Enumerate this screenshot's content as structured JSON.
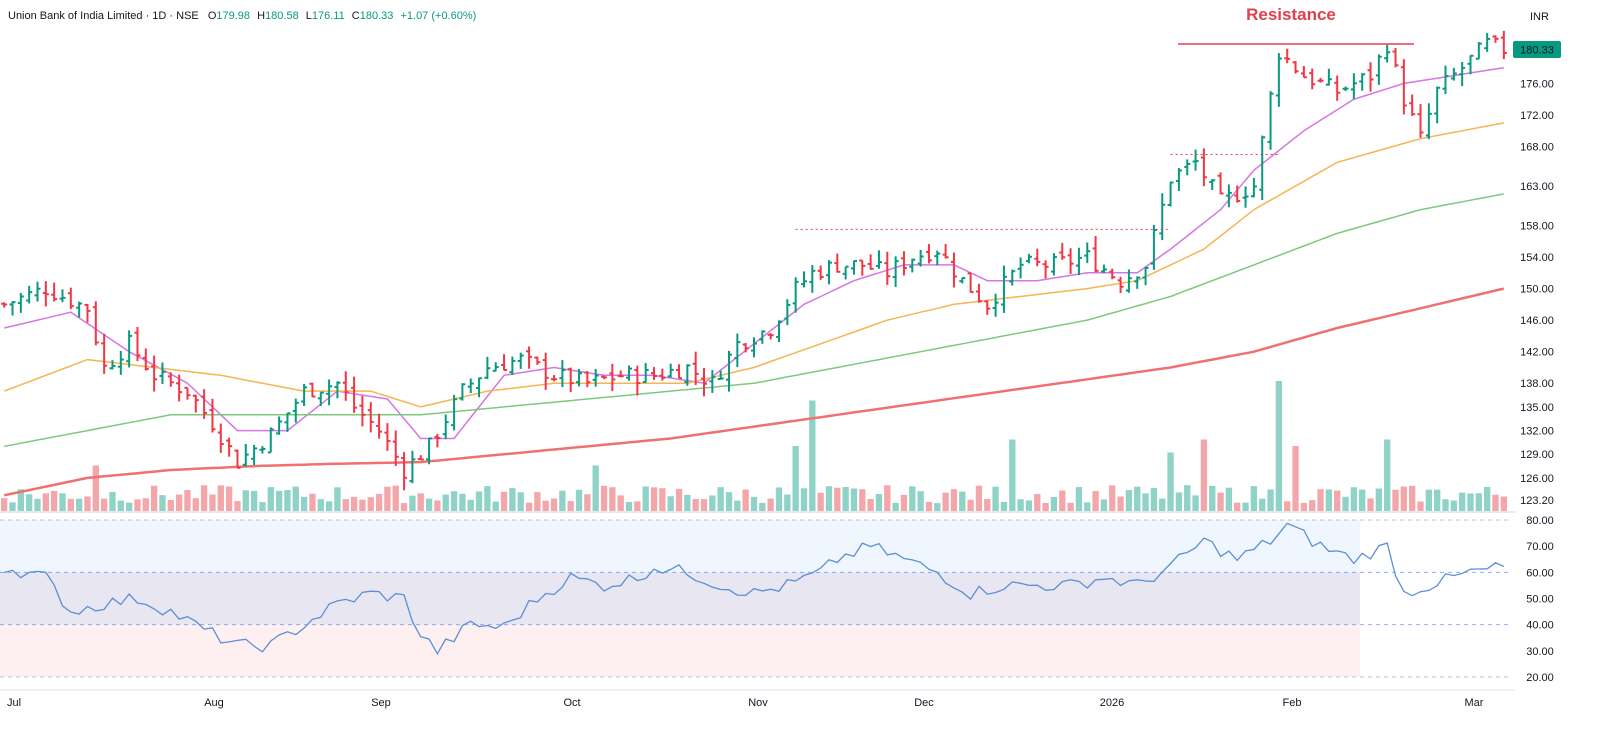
{
  "header": {
    "name": "Union Bank of India Limited · 1D · NSE",
    "o_label": "O",
    "o": "179.98",
    "h_label": "H",
    "h": "180.58",
    "l_label": "L",
    "l": "176.11",
    "c_label": "C",
    "c": "180.33",
    "change": "+1.07 (+0.60%)"
  },
  "currency": "INR",
  "last_price": "180.33",
  "annotation": "Resistance",
  "colors": {
    "up": "#089981",
    "down": "#f23645",
    "vol_up": "#8fd2c7",
    "vol_down": "#f4a7ab",
    "ma20": "#d776e2",
    "ma50": "#f5b553",
    "ma100": "#7ec87e",
    "ma200": "#f07070",
    "rsi": "#5b8fd6",
    "resistance": "#e03f4f",
    "badge": "#089981"
  },
  "chart_data": [
    {
      "type": "ohlc",
      "title": "Union Bank of India Limited · 1D · NSE",
      "price_ticks": [
        "123.20",
        "126.00",
        "129.00",
        "132.00",
        "135.00",
        "138.00",
        "142.00",
        "146.00",
        "150.00",
        "154.00",
        "158.00",
        "163.00",
        "168.00",
        "172.00",
        "176.00"
      ],
      "x_ticks": [
        "Jul",
        "Aug",
        "Sep",
        "Oct",
        "Nov",
        "Dec",
        "2026",
        "Feb",
        "Mar"
      ],
      "date_range": [
        "Jul",
        "Feb"
      ],
      "ylim": [
        123.2,
        182
      ],
      "close_path": [
        [
          0,
          148
        ],
        [
          5,
          150
        ],
        [
          10,
          147.5
        ],
        [
          12,
          140
        ],
        [
          15,
          143
        ],
        [
          18,
          139
        ],
        [
          22,
          137
        ],
        [
          25,
          133
        ],
        [
          28,
          128
        ],
        [
          32,
          131.5
        ],
        [
          36,
          137
        ],
        [
          40,
          138
        ],
        [
          42,
          135
        ],
        [
          45,
          132
        ],
        [
          48,
          127
        ],
        [
          51,
          130
        ],
        [
          55,
          137
        ],
        [
          58,
          140
        ],
        [
          62,
          141
        ],
        [
          66,
          139
        ],
        [
          70,
          138
        ],
        [
          74,
          139
        ],
        [
          78,
          139
        ],
        [
          82,
          140
        ],
        [
          85,
          138
        ],
        [
          88,
          143
        ],
        [
          92,
          145
        ],
        [
          95,
          150
        ],
        [
          97,
          152
        ],
        [
          100,
          153
        ],
        [
          103,
          153
        ],
        [
          106,
          152
        ],
        [
          109,
          154
        ],
        [
          112,
          155
        ],
        [
          115,
          151
        ],
        [
          118,
          148
        ],
        [
          122,
          153
        ],
        [
          126,
          153
        ],
        [
          130,
          154
        ],
        [
          134,
          151
        ],
        [
          137,
          153
        ],
        [
          140,
          164
        ],
        [
          143,
          166
        ],
        [
          146,
          161
        ],
        [
          150,
          163
        ],
        [
          153,
          180
        ],
        [
          156,
          177
        ],
        [
          160,
          175
        ],
        [
          164,
          177
        ],
        [
          166,
          181
        ],
        [
          168,
          174
        ],
        [
          170,
          169
        ],
        [
          172,
          175
        ],
        [
          175,
          178
        ],
        [
          178,
          181
        ],
        [
          180,
          180.33
        ]
      ],
      "moving_averages": [
        {
          "name": "MA20",
          "path": [
            [
              0,
              145
            ],
            [
              8,
              147
            ],
            [
              15,
              142
            ],
            [
              22,
              138
            ],
            [
              28,
              132
            ],
            [
              34,
              132
            ],
            [
              40,
              137
            ],
            [
              46,
              136
            ],
            [
              50,
              131
            ],
            [
              54,
              131
            ],
            [
              60,
              139
            ],
            [
              66,
              140
            ],
            [
              72,
              139
            ],
            [
              78,
              139
            ],
            [
              84,
              138
            ],
            [
              90,
              143
            ],
            [
              96,
              148
            ],
            [
              102,
              151
            ],
            [
              108,
              153
            ],
            [
              114,
              153
            ],
            [
              118,
              151
            ],
            [
              124,
              151
            ],
            [
              130,
              152
            ],
            [
              136,
              152
            ],
            [
              140,
              155
            ],
            [
              146,
              160
            ],
            [
              150,
              165
            ],
            [
              156,
              170
            ],
            [
              162,
              174
            ],
            [
              168,
              176
            ],
            [
              174,
              177
            ],
            [
              180,
              178
            ]
          ]
        },
        {
          "name": "MA50",
          "path": [
            [
              0,
              137
            ],
            [
              10,
              141
            ],
            [
              18,
              140
            ],
            [
              26,
              139
            ],
            [
              36,
              137
            ],
            [
              44,
              137
            ],
            [
              50,
              135
            ],
            [
              58,
              137
            ],
            [
              66,
              138
            ],
            [
              74,
              138
            ],
            [
              82,
              138
            ],
            [
              90,
              140
            ],
            [
              98,
              143
            ],
            [
              106,
              146
            ],
            [
              114,
              148
            ],
            [
              122,
              149
            ],
            [
              130,
              150
            ],
            [
              136,
              151
            ],
            [
              144,
              155
            ],
            [
              150,
              160
            ],
            [
              160,
              166
            ],
            [
              170,
              169
            ],
            [
              180,
              171
            ]
          ]
        },
        {
          "name": "MA100",
          "path": [
            [
              0,
              130
            ],
            [
              10,
              132
            ],
            [
              20,
              134
            ],
            [
              30,
              134
            ],
            [
              40,
              134
            ],
            [
              50,
              134
            ],
            [
              60,
              135
            ],
            [
              70,
              136
            ],
            [
              80,
              137
            ],
            [
              90,
              138
            ],
            [
              100,
              140
            ],
            [
              110,
              142
            ],
            [
              120,
              144
            ],
            [
              130,
              146
            ],
            [
              140,
              149
            ],
            [
              150,
              153
            ],
            [
              160,
              157
            ],
            [
              170,
              160
            ],
            [
              180,
              162
            ]
          ]
        },
        {
          "name": "MA200",
          "path": [
            [
              0,
              123.8
            ],
            [
              10,
              126
            ],
            [
              20,
              127
            ],
            [
              30,
              127.5
            ],
            [
              40,
              127.8
            ],
            [
              50,
              128
            ],
            [
              60,
              129
            ],
            [
              70,
              130
            ],
            [
              80,
              131
            ],
            [
              90,
              132.5
            ],
            [
              100,
              134
            ],
            [
              110,
              135.5
            ],
            [
              120,
              137
            ],
            [
              130,
              138.5
            ],
            [
              140,
              140
            ],
            [
              150,
              142
            ],
            [
              160,
              145
            ],
            [
              170,
              147.5
            ],
            [
              180,
              150
            ]
          ]
        }
      ],
      "resistance_level": 181,
      "dotted_levels": [
        {
          "price": 157.5,
          "from": 95,
          "to": 140
        },
        {
          "price": 167,
          "from": 140,
          "to": 153
        }
      ],
      "volume_spikes": [
        {
          "bar": 11,
          "v": 0.35
        },
        {
          "bar": 97,
          "v": 0.85
        },
        {
          "bar": 95,
          "v": 0.5
        },
        {
          "bar": 121,
          "v": 0.55
        },
        {
          "bar": 140,
          "v": 0.45
        },
        {
          "bar": 144,
          "v": 0.55
        },
        {
          "bar": 153,
          "v": 1.0
        },
        {
          "bar": 155,
          "v": 0.5
        },
        {
          "bar": 166,
          "v": 0.55
        },
        {
          "bar": 71,
          "v": 0.35
        }
      ]
    },
    {
      "type": "line",
      "name": "RSI",
      "ylim": [
        20,
        80
      ],
      "ticks": [
        "80.00",
        "70.00",
        "60.00",
        "50.00",
        "40.00",
        "30.00",
        "20.00"
      ],
      "levels": [
        80,
        60,
        40,
        20
      ],
      "path": [
        [
          0,
          62
        ],
        [
          5,
          58
        ],
        [
          8,
          45
        ],
        [
          12,
          48
        ],
        [
          16,
          50
        ],
        [
          20,
          45
        ],
        [
          24,
          38
        ],
        [
          28,
          32
        ],
        [
          32,
          32
        ],
        [
          36,
          40
        ],
        [
          40,
          48
        ],
        [
          44,
          52
        ],
        [
          48,
          50
        ],
        [
          50,
          36
        ],
        [
          52,
          30
        ],
        [
          56,
          40
        ],
        [
          60,
          39
        ],
        [
          64,
          50
        ],
        [
          68,
          58
        ],
        [
          72,
          55
        ],
        [
          76,
          58
        ],
        [
          78,
          62
        ],
        [
          82,
          60
        ],
        [
          86,
          55
        ],
        [
          90,
          52
        ],
        [
          94,
          55
        ],
        [
          98,
          60
        ],
        [
          100,
          65
        ],
        [
          104,
          70
        ],
        [
          108,
          65
        ],
        [
          112,
          60
        ],
        [
          116,
          52
        ],
        [
          120,
          55
        ],
        [
          124,
          55
        ],
        [
          128,
          55
        ],
        [
          132,
          58
        ],
        [
          136,
          55
        ],
        [
          140,
          62
        ],
        [
          144,
          72
        ],
        [
          148,
          65
        ],
        [
          152,
          72
        ],
        [
          154,
          78
        ],
        [
          158,
          70
        ],
        [
          162,
          65
        ],
        [
          166,
          70
        ],
        [
          168,
          52
        ],
        [
          172,
          56
        ],
        [
          176,
          60
        ],
        [
          180,
          62
        ]
      ]
    }
  ]
}
